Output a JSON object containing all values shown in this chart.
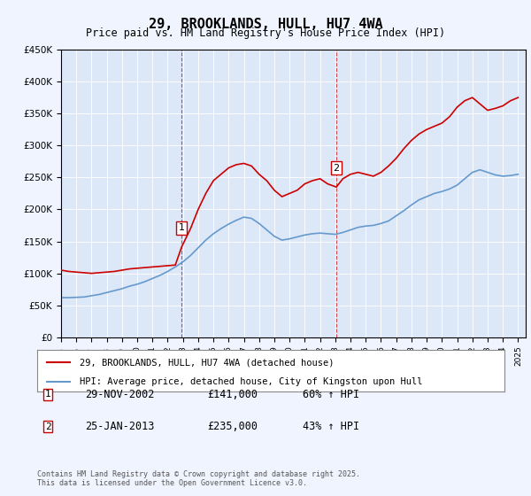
{
  "title": "29, BROOKLANDS, HULL, HU7 4WA",
  "subtitle": "Price paid vs. HM Land Registry's House Price Index (HPI)",
  "ylabel": "",
  "background_color": "#f0f4ff",
  "plot_bg_color": "#dce8f8",
  "red_color": "#cc0000",
  "blue_color": "#6699cc",
  "ymin": 0,
  "ymax": 450000,
  "xmin": 1995.0,
  "xmax": 2025.5,
  "transactions": [
    {
      "num": 1,
      "date": "29-NOV-2002",
      "price": 141000,
      "pct": "60%",
      "dir": "↑",
      "x": 2002.91
    },
    {
      "num": 2,
      "date": "25-JAN-2013",
      "price": 235000,
      "pct": "43%",
      "dir": "↑",
      "x": 2013.07
    }
  ],
  "legend_line1": "29, BROOKLANDS, HULL, HU7 4WA (detached house)",
  "legend_line2": "HPI: Average price, detached house, City of Kingston upon Hull",
  "footer": "Contains HM Land Registry data © Crown copyright and database right 2025.\nThis data is licensed under the Open Government Licence v3.0.",
  "red_x": [
    1995.0,
    1995.5,
    1996.0,
    1996.5,
    1997.0,
    1997.5,
    1998.0,
    1998.5,
    1999.0,
    1999.5,
    2000.0,
    2000.5,
    2001.0,
    2001.5,
    2002.0,
    2002.5,
    2002.91,
    2003.5,
    2004.0,
    2004.5,
    2005.0,
    2005.5,
    2006.0,
    2006.5,
    2007.0,
    2007.5,
    2008.0,
    2008.5,
    2009.0,
    2009.5,
    2010.0,
    2010.5,
    2011.0,
    2011.5,
    2012.0,
    2012.5,
    2013.07,
    2013.5,
    2014.0,
    2014.5,
    2015.0,
    2015.5,
    2016.0,
    2016.5,
    2017.0,
    2017.5,
    2018.0,
    2018.5,
    2019.0,
    2019.5,
    2020.0,
    2020.5,
    2021.0,
    2021.5,
    2022.0,
    2022.5,
    2023.0,
    2023.5,
    2024.0,
    2024.5,
    2025.0
  ],
  "red_y": [
    105000,
    103000,
    102000,
    101000,
    100000,
    101000,
    102000,
    103000,
    105000,
    107000,
    108000,
    109000,
    110000,
    111000,
    112000,
    113000,
    141000,
    170000,
    200000,
    225000,
    245000,
    255000,
    265000,
    270000,
    272000,
    268000,
    255000,
    245000,
    230000,
    220000,
    225000,
    230000,
    240000,
    245000,
    248000,
    240000,
    235000,
    248000,
    255000,
    258000,
    255000,
    252000,
    258000,
    268000,
    280000,
    295000,
    308000,
    318000,
    325000,
    330000,
    335000,
    345000,
    360000,
    370000,
    375000,
    365000,
    355000,
    358000,
    362000,
    370000,
    375000
  ],
  "blue_x": [
    1995.0,
    1995.5,
    1996.0,
    1996.5,
    1997.0,
    1997.5,
    1998.0,
    1998.5,
    1999.0,
    1999.5,
    2000.0,
    2000.5,
    2001.0,
    2001.5,
    2002.0,
    2002.5,
    2003.0,
    2003.5,
    2004.0,
    2004.5,
    2005.0,
    2005.5,
    2006.0,
    2006.5,
    2007.0,
    2007.5,
    2008.0,
    2008.5,
    2009.0,
    2009.5,
    2010.0,
    2010.5,
    2011.0,
    2011.5,
    2012.0,
    2012.5,
    2013.0,
    2013.5,
    2014.0,
    2014.5,
    2015.0,
    2015.5,
    2016.0,
    2016.5,
    2017.0,
    2017.5,
    2018.0,
    2018.5,
    2019.0,
    2019.5,
    2020.0,
    2020.5,
    2021.0,
    2021.5,
    2022.0,
    2022.5,
    2023.0,
    2023.5,
    2024.0,
    2024.5,
    2025.0
  ],
  "blue_y": [
    62000,
    62000,
    62500,
    63000,
    65000,
    67000,
    70000,
    73000,
    76000,
    80000,
    83000,
    87000,
    92000,
    97000,
    103000,
    110000,
    118000,
    128000,
    140000,
    152000,
    162000,
    170000,
    177000,
    183000,
    188000,
    186000,
    178000,
    168000,
    158000,
    152000,
    154000,
    157000,
    160000,
    162000,
    163000,
    162000,
    161000,
    164000,
    168000,
    172000,
    174000,
    175000,
    178000,
    182000,
    190000,
    198000,
    207000,
    215000,
    220000,
    225000,
    228000,
    232000,
    238000,
    248000,
    258000,
    262000,
    258000,
    254000,
    252000,
    253000,
    255000
  ]
}
